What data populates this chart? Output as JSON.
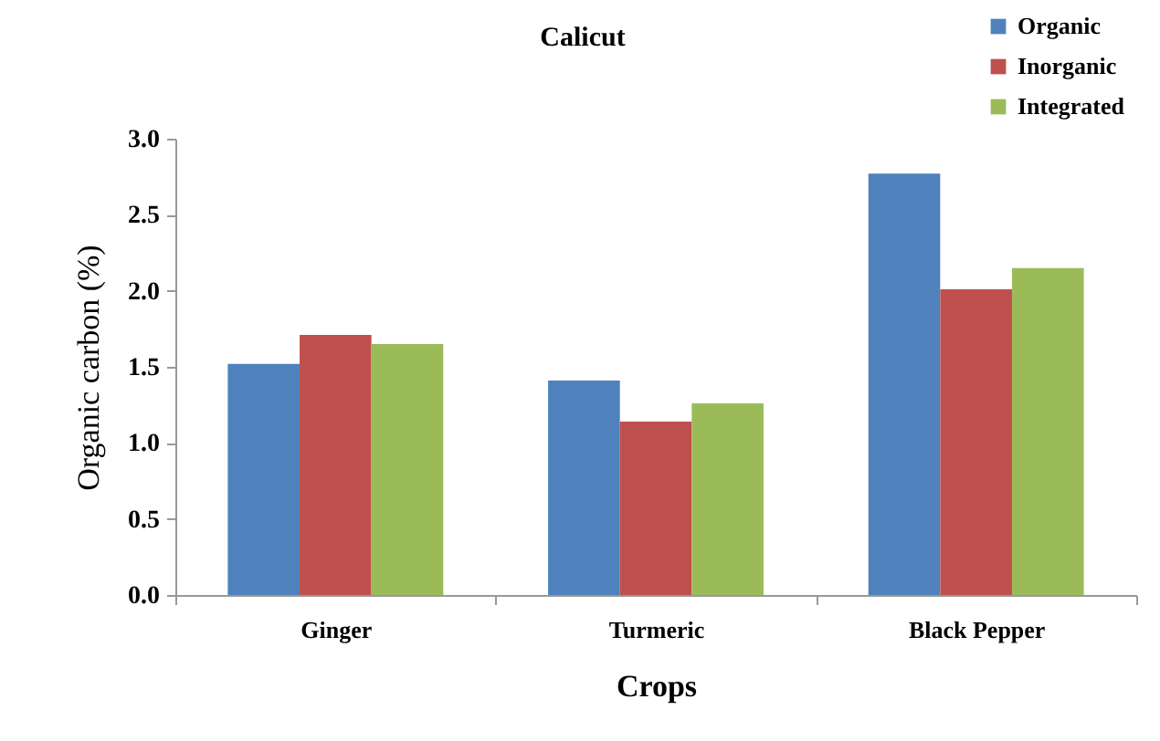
{
  "chart_data": {
    "type": "bar",
    "title": "Calicut",
    "xlabel": "Crops",
    "ylabel": "Organic carbon (%)",
    "categories": [
      "Ginger",
      "Turmeric",
      "Black Pepper"
    ],
    "series": [
      {
        "name": "Organic",
        "color": "#4f81bd",
        "values": [
          1.52,
          1.41,
          2.77
        ]
      },
      {
        "name": "Inorganic",
        "color": "#c0504d",
        "values": [
          1.71,
          1.14,
          2.01
        ]
      },
      {
        "name": "Integrated",
        "color": "#9bbb59",
        "values": [
          1.65,
          1.26,
          2.15
        ]
      }
    ],
    "ylim": [
      0,
      3
    ],
    "yticks": [
      {
        "value": 0,
        "label": "0.0"
      },
      {
        "value": 0.5,
        "label": "0.5"
      },
      {
        "value": 1,
        "label": "1.0"
      },
      {
        "value": 1.5,
        "label": "1.5"
      },
      {
        "value": 2,
        "label": "2.0"
      },
      {
        "value": 2.5,
        "label": "2.5"
      },
      {
        "value": 3,
        "label": "3.0"
      }
    ],
    "grid": false,
    "legend": "top right"
  }
}
